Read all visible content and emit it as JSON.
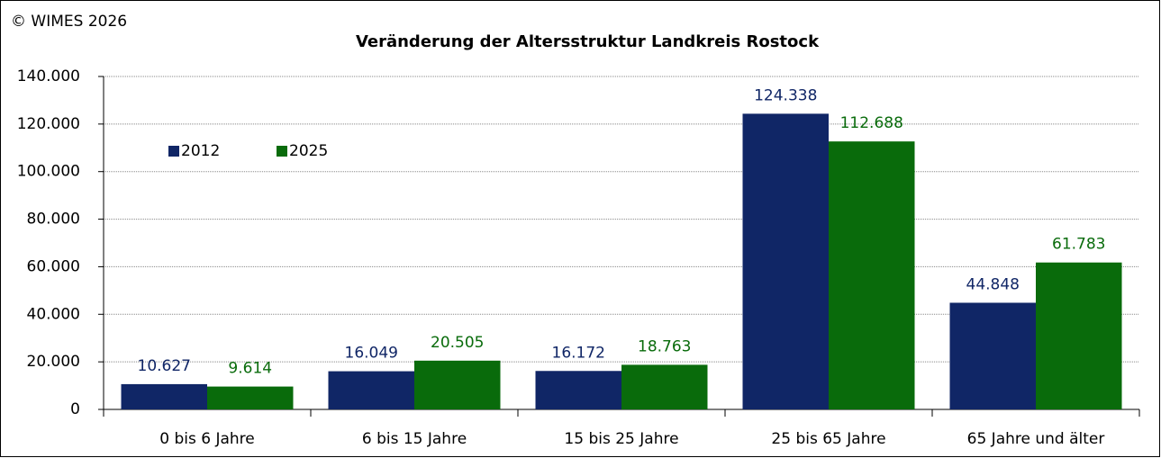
{
  "copyright": "© WIMES 2026",
  "chart_data": {
    "type": "bar",
    "title": "Veränderung der Altersstruktur Landkreis Rostock",
    "categories": [
      "0 bis 6 Jahre",
      "6 bis 15 Jahre",
      "15 bis 25 Jahre",
      "25 bis 65 Jahre",
      "65 Jahre und älter"
    ],
    "series": [
      {
        "name": "2012",
        "color": "#102666",
        "values": [
          10627,
          16049,
          16172,
          124338,
          44848
        ],
        "value_labels": [
          "10.627",
          "16.049",
          "16.172",
          "124.338",
          "44.848"
        ]
      },
      {
        "name": "2025",
        "color": "#096b0b",
        "values": [
          9614,
          20505,
          18763,
          112688,
          61783
        ],
        "value_labels": [
          "9.614",
          "20.505",
          "18.763",
          "112.688",
          "61.783"
        ]
      }
    ],
    "ylim": [
      0,
      140000
    ],
    "yticks": [
      0,
      {
        "value": 20000,
        "label": "20.000"
      },
      {
        "value": 40000,
        "label": "40.000"
      },
      {
        "value": 60000,
        "label": "60.000"
      },
      {
        "value": 80000,
        "label": "80.000"
      },
      {
        "value": 100000,
        "label": "100.000"
      },
      {
        "value": 120000,
        "label": "120.000"
      },
      {
        "value": 140000,
        "label": "140.000"
      }
    ],
    "grid": true,
    "legend": "upper left"
  }
}
